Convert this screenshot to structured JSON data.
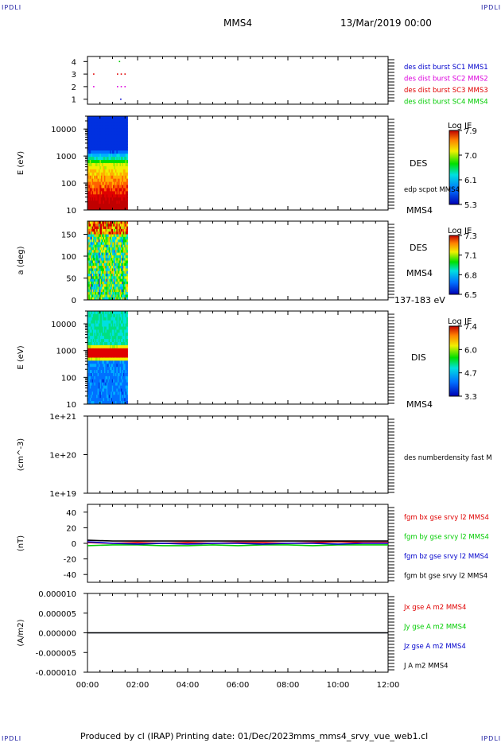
{
  "corner_marks": [
    "IPDLI",
    "IPDLI",
    "IPDLI",
    "IPDLI"
  ],
  "header": {
    "spacecraft": "MMS4",
    "date": "13/Mar/2019 00:00"
  },
  "footer": {
    "produced": "Produced by cl (IRAP)",
    "printing": "Printing date: 01/Dec/2023",
    "file": "mms_mms4_srvy_vue_web1.cl"
  },
  "colors": {
    "red": "#e00000",
    "green": "#00cc00",
    "blue": "#0000cc",
    "magenta": "#dd00dd",
    "black": "#000000"
  },
  "chart_data": [
    {
      "type": "scatter",
      "panel": "burst availability",
      "ylim": [
        0.6,
        4.4
      ],
      "yticks": [
        "1",
        "2",
        "3",
        "4"
      ],
      "xlim": [
        0,
        12
      ],
      "series": [
        {
          "name": "des dist burst SC1 MMS1",
          "color": "#0000cc",
          "x": [
            1.33
          ],
          "y": [
            1
          ]
        },
        {
          "name": "des dist burst SC2 MMS2",
          "color": "#dd00dd",
          "x": [
            0.25,
            1.2,
            1.35,
            1.5
          ],
          "y": [
            2,
            2,
            2,
            2
          ]
        },
        {
          "name": "des dist burst SC3 MMS3",
          "color": "#e00000",
          "x": [
            0.25,
            1.2,
            1.35,
            1.5
          ],
          "y": [
            3,
            3,
            3,
            3
          ]
        },
        {
          "name": "des dist burst SC4 MMS4",
          "color": "#00cc00",
          "x": [
            1.28
          ],
          "y": [
            4
          ]
        }
      ],
      "legend": [
        "des dist burst SC1 MMS1",
        "des dist burst SC2 MMS2",
        "des dist burst SC3 MMS3",
        "des dist burst SC4 MMS4"
      ]
    },
    {
      "type": "heatmap",
      "panel": "DES energy spectrogram",
      "ylabel": "E (eV)",
      "yscale": "log",
      "ylim": [
        10,
        30000
      ],
      "yticks": [
        "10",
        "100",
        "1000",
        "10000"
      ],
      "data_x_range": [
        0,
        1.6
      ],
      "colorbar": {
        "title": "Log JE",
        "ticks": [
          "7.9",
          "7.0",
          "6.1",
          "5.3"
        ],
        "range": [
          5.3,
          7.9
        ]
      },
      "right_labels": [
        "DES",
        "edp scpot MMS4",
        "MMS4"
      ]
    },
    {
      "type": "heatmap",
      "panel": "DES pitch angle",
      "ylabel": "a (deg)",
      "ylim": [
        0,
        180
      ],
      "yticks": [
        "0",
        "50",
        "100",
        "150"
      ],
      "data_x_range": [
        0,
        1.6
      ],
      "colorbar": {
        "title": "Log JE",
        "ticks": [
          "7.3",
          "7.1",
          "6.8",
          "6.5"
        ],
        "range": [
          6.5,
          7.3
        ]
      },
      "right_labels": [
        "DES",
        "MMS4",
        "137-183 eV"
      ]
    },
    {
      "type": "heatmap",
      "panel": "DIS energy spectrogram",
      "ylabel": "E (eV)",
      "yscale": "log",
      "ylim": [
        10,
        30000
      ],
      "yticks": [
        "10",
        "100",
        "1000",
        "10000"
      ],
      "data_x_range": [
        0,
        1.6
      ],
      "colorbar": {
        "title": "Log JE",
        "ticks": [
          "7.4",
          "6.0",
          "4.7",
          "3.3"
        ],
        "range": [
          3.3,
          7.4
        ]
      },
      "right_labels": [
        "DIS",
        "MMS4"
      ]
    },
    {
      "type": "line",
      "panel": "density",
      "ylabel": "(cm^-3)",
      "yscale": "log",
      "yticks": [
        "1e+19",
        "1e+20",
        "1e+21"
      ],
      "series": [],
      "right_labels": [
        "des numberdensity fast M"
      ]
    },
    {
      "type": "line",
      "panel": "magnetic field",
      "ylabel": "(nT)",
      "ylim": [
        -50,
        50
      ],
      "yticks": [
        "-40",
        "-20",
        "0",
        "20",
        "40"
      ],
      "series": [
        {
          "name": "fgm bx gse srvy l2 MMS4",
          "color": "#e00000",
          "x": [
            0,
            1,
            2,
            3,
            4,
            5,
            6,
            7,
            8,
            9,
            10,
            11,
            12
          ],
          "y": [
            1,
            0,
            1,
            0,
            1,
            0,
            1,
            1,
            0,
            1,
            2,
            1,
            1
          ]
        },
        {
          "name": "fgm by gse srvy l2 MMS4",
          "color": "#00cc00",
          "x": [
            0,
            1,
            2,
            3,
            4,
            5,
            6,
            7,
            8,
            9,
            10,
            11,
            12
          ],
          "y": [
            -3,
            -2,
            -2,
            -3,
            -3,
            -2,
            -3,
            -2,
            -2,
            -3,
            -2,
            -2,
            -2
          ]
        },
        {
          "name": "fgm bz gse srvy l2 MMS4",
          "color": "#0000cc",
          "x": [
            0,
            1,
            2,
            3,
            4,
            5,
            6,
            7,
            8,
            9,
            10,
            11,
            12
          ],
          "y": [
            2,
            0,
            -1,
            0,
            -1,
            0,
            0,
            -1,
            0,
            0,
            -1,
            0,
            0
          ]
        },
        {
          "name": "fgm bt gse srvy l2 MMS4",
          "color": "#000000",
          "x": [
            0,
            1,
            2,
            3,
            4,
            5,
            6,
            7,
            8,
            9,
            10,
            11,
            12
          ],
          "y": [
            4,
            3,
            3,
            3,
            3,
            3,
            3,
            3,
            3,
            3,
            3,
            3,
            3
          ]
        }
      ]
    },
    {
      "type": "line",
      "panel": "current density",
      "ylabel": "(A/m2)",
      "ylim": [
        -1e-05,
        1e-05
      ],
      "yticks": [
        "-0.000010",
        "-0.000005",
        "0.000000",
        "0.000005",
        "0.000010"
      ],
      "series": [
        {
          "name": "Jx gse A m2 MMS4",
          "color": "#e00000",
          "x": [
            0,
            12
          ],
          "y": [
            0,
            0
          ]
        },
        {
          "name": "Jy gse A m2 MMS4",
          "color": "#00cc00",
          "x": [
            0,
            12
          ],
          "y": [
            0,
            0
          ]
        },
        {
          "name": "Jz gse A m2 MMS4",
          "color": "#0000cc",
          "x": [
            0,
            12
          ],
          "y": [
            0,
            0
          ]
        },
        {
          "name": "J A m2 MMS4",
          "color": "#000000",
          "x": [
            0,
            12
          ],
          "y": [
            0,
            0
          ]
        }
      ]
    }
  ],
  "x_axis": {
    "ticks": [
      "00:00",
      "02:00",
      "04:00",
      "06:00",
      "08:00",
      "10:00",
      "12:00"
    ],
    "xlim": [
      0,
      12
    ]
  }
}
